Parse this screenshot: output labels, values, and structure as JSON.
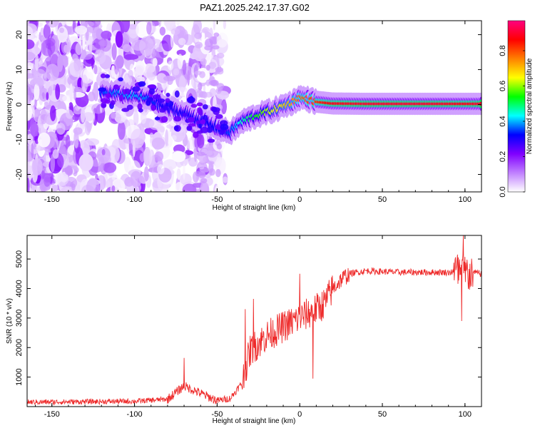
{
  "title": "PAZ1.2025.242.17.37.G02",
  "chart_data": [
    {
      "type": "heatmap",
      "title": "PAZ1.2025.242.17.37.G02",
      "xlabel": "Height of straight line (km)",
      "ylabel": "Frequency (Hz)",
      "xlim": [
        -165,
        110
      ],
      "ylim": [
        -25,
        24
      ],
      "xticks": [
        -150,
        -100,
        -50,
        0,
        50,
        100
      ],
      "yticks": [
        -20,
        -10,
        0,
        10,
        20
      ],
      "colorbar": {
        "label": "Normalized spectral amplitude",
        "range": [
          0,
          0.97
        ],
        "ticks": [
          "0.0",
          "0.2",
          "0.4",
          "0.6",
          "0.8"
        ],
        "colors": [
          "#ffffff",
          "#c080ff",
          "#8000ff",
          "#0000ff",
          "#00ffff",
          "#00ff00",
          "#ffff00",
          "#ff8000",
          "#ff0000",
          "#ff0080"
        ]
      },
      "ridge": {
        "x": [
          -120,
          -110,
          -100,
          -90,
          -80,
          -70,
          -60,
          -50,
          -42,
          -35,
          -25,
          -15,
          -5,
          0,
          5,
          10,
          20,
          40,
          60,
          80,
          100,
          110
        ],
        "y": [
          3.5,
          3.0,
          2.5,
          1.5,
          -1.0,
          -2.5,
          -4.5,
          -6.5,
          -8.0,
          -5.0,
          -3.0,
          -1.5,
          0.5,
          2.0,
          1.5,
          0.8,
          0.3,
          0.2,
          0.2,
          0.2,
          0.2,
          0.2
        ],
        "amplitude": [
          0.35,
          0.38,
          0.4,
          0.36,
          0.28,
          0.3,
          0.3,
          0.32,
          0.35,
          0.45,
          0.55,
          0.65,
          0.72,
          0.78,
          0.8,
          0.82,
          0.88,
          0.9,
          0.9,
          0.9,
          0.88,
          0.9
        ]
      }
    },
    {
      "type": "line",
      "xlabel": "Height of straight line (km)",
      "ylabel": "SNR (10 * v/v)",
      "xlim": [
        -165,
        110
      ],
      "ylim": [
        0,
        5800
      ],
      "xticks": [
        -150,
        -100,
        -50,
        0,
        50,
        100
      ],
      "yticks": [
        1000,
        2000,
        3000,
        4000,
        5000
      ],
      "color": "#ee2a2a",
      "envelope": {
        "x": [
          -165,
          -100,
          -80,
          -70,
          -60,
          -50,
          -42,
          -35,
          -30,
          -20,
          -10,
          0,
          10,
          15,
          20,
          25,
          30,
          40,
          60,
          80,
          95,
          100,
          105,
          110
        ],
        "y": [
          150,
          180,
          250,
          700,
          450,
          200,
          280,
          800,
          1900,
          2400,
          2700,
          3000,
          3300,
          3500,
          4000,
          4300,
          4500,
          4600,
          4550,
          4550,
          4550,
          4500,
          4550,
          4500
        ]
      },
      "spikes": [
        {
          "x": -70,
          "y": 1650
        },
        {
          "x": -33,
          "y": 3300
        },
        {
          "x": -28,
          "y": 3650
        },
        {
          "x": 0,
          "y": 4500
        },
        {
          "x": 8,
          "y": 950
        },
        {
          "x": 98,
          "y": 2900
        },
        {
          "x": 99,
          "y": 5800
        }
      ]
    }
  ]
}
